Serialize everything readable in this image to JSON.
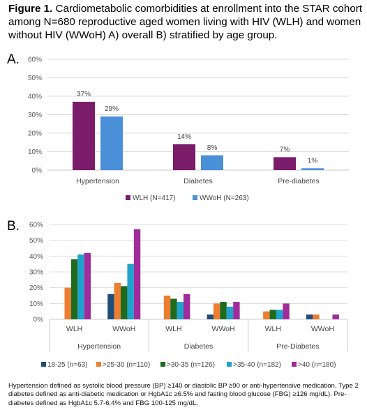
{
  "caption": {
    "bold": "Figure 1.",
    "text": "Cardiometabolic comorbidities at enrollment into the STAR cohort among N=680 reproductive aged women living with HIV (WLH) and women without HIV (WWoH) A) overall B) stratified by age group."
  },
  "panel_labels": {
    "a": "A.",
    "b": "B."
  },
  "chart_data": [
    {
      "type": "bar",
      "categories": [
        "Hypertension",
        "Diabetes",
        "Pre-diabetes"
      ],
      "series": [
        {
          "name": "WLH (N=417)",
          "values": [
            37,
            14,
            7
          ],
          "labels": [
            "37%",
            "14%",
            "7%"
          ],
          "color": "#7B1C6A"
        },
        {
          "name": "WWoH (N=263)",
          "values": [
            29,
            8,
            1
          ],
          "labels": [
            "29%",
            "8%",
            "1%"
          ],
          "color": "#4A90D9"
        }
      ],
      "yticks": [
        "0%",
        "10%",
        "20%",
        "30%",
        "40%",
        "50%",
        "60%"
      ],
      "ylim": [
        0,
        60
      ],
      "grid": true,
      "legend": "bottom"
    },
    {
      "type": "bar",
      "groups": [
        "Hypertension",
        "Diabetes",
        "Pre-Diabetes"
      ],
      "subcategories": [
        "WLH",
        "WWoH"
      ],
      "series": [
        {
          "name": "18-25 (n=63)",
          "values": [
            0,
            16,
            0,
            3,
            0,
            3
          ],
          "color": "#1F4E79"
        },
        {
          "name": ">25-30 (n=110)",
          "values": [
            20,
            23,
            15,
            10,
            5,
            3
          ],
          "color": "#ED7D31"
        },
        {
          "name": ">30-35 (n=126)",
          "values": [
            38,
            21,
            13,
            11,
            6,
            0
          ],
          "color": "#1E6B1E"
        },
        {
          "name": ">35-40 (n=182)",
          "values": [
            41,
            35,
            11,
            8,
            6,
            0
          ],
          "color": "#1FA2CC"
        },
        {
          "name": ">40 (n=180)",
          "values": [
            42,
            57,
            16,
            11,
            10,
            3
          ],
          "color": "#A02C9B"
        }
      ],
      "yticks": [
        "0%",
        "10%",
        "20%",
        "30%",
        "40%",
        "50%",
        "60%"
      ],
      "ylim": [
        0,
        60
      ],
      "grid": true,
      "legend": "bottom"
    }
  ],
  "footnote": "Hypertension defined as systolic blood pressure (BP) ≥140 or diastolic BP ≥90 or anti-hypertensive medication. Type 2 diabetes defined as anti-diabetic medication or HgbA1c ≥6.5% and fasting blood glucose (FBG) ≥126 mg/dL). Pre-diabetes defined as HgbA1c 5.7-6.4% and FBG 100-125 mg/dL."
}
